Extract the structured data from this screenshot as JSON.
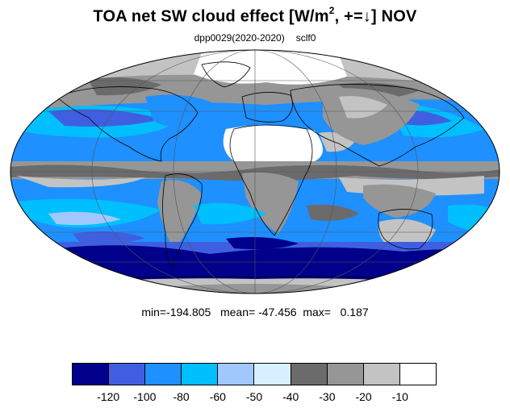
{
  "title": {
    "main": "TOA net SW cloud effect [W/m",
    "sup": "2",
    "rest": ", +=↓]  NOV"
  },
  "subtitle": {
    "run": "dpp0029(2020-2020)",
    "variable": "sclf0"
  },
  "stats": {
    "text": "min=-194.805   mean= -47.456  max=   0.187"
  },
  "colorbar": {
    "colors": [
      "#00008b",
      "#3f5fe0",
      "#1e90ff",
      "#00bfff",
      "#a0c8ff",
      "#d6f0ff",
      "#6b6b6b",
      "#969696",
      "#c3c3c3",
      "#ffffff"
    ],
    "labels": [
      "-120",
      "-100",
      "-80",
      "-60",
      "-50",
      "-40",
      "-30",
      "-20",
      "-10"
    ]
  },
  "map": {
    "projection": "mollweide",
    "land_outline_color": "#000000",
    "grid_color": "#555555"
  }
}
